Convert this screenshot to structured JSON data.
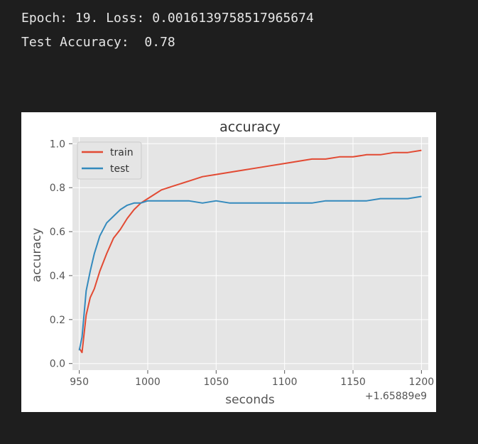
{
  "console": {
    "epoch_line": "Epoch: 19. Loss: 0.0016139758517965674",
    "accuracy_line": "Test Accuracy:  0.78"
  },
  "chart_data": {
    "type": "line",
    "title": "accuracy",
    "xlabel": "seconds",
    "ylabel": "accuracy",
    "offset_label": "+1.65889e9",
    "xlim": [
      945,
      1205
    ],
    "ylim": [
      -0.03,
      1.03
    ],
    "xticks": [
      950,
      1000,
      1050,
      1100,
      1150,
      1200
    ],
    "xtick_labels": [
      "950",
      "1000",
      "1050",
      "1100",
      "1150",
      "1200"
    ],
    "yticks": [
      0.0,
      0.2,
      0.4,
      0.6,
      0.8,
      1.0
    ],
    "ytick_labels": [
      "0.0",
      "0.2",
      "0.4",
      "0.6",
      "0.8",
      "1.0"
    ],
    "grid": true,
    "legend_position": "top-left",
    "colors": {
      "train": "#E24A33",
      "test": "#348ABD",
      "axes_bg": "#E5E5E5",
      "grid": "#FFFFFF"
    },
    "series": [
      {
        "name": "train",
        "x": [
          950,
          952,
          955,
          958,
          961,
          965,
          970,
          975,
          980,
          985,
          990,
          995,
          1000,
          1005,
          1010,
          1020,
          1030,
          1040,
          1050,
          1060,
          1070,
          1080,
          1090,
          1100,
          1110,
          1120,
          1130,
          1140,
          1150,
          1160,
          1170,
          1180,
          1190,
          1200
        ],
        "y": [
          0.07,
          0.05,
          0.22,
          0.3,
          0.34,
          0.42,
          0.5,
          0.57,
          0.61,
          0.66,
          0.7,
          0.73,
          0.75,
          0.77,
          0.79,
          0.81,
          0.83,
          0.85,
          0.86,
          0.87,
          0.88,
          0.89,
          0.9,
          0.91,
          0.92,
          0.93,
          0.93,
          0.94,
          0.94,
          0.95,
          0.95,
          0.96,
          0.96,
          0.97
        ]
      },
      {
        "name": "test",
        "x": [
          950,
          952,
          955,
          958,
          961,
          965,
          970,
          975,
          980,
          985,
          990,
          995,
          1000,
          1005,
          1010,
          1020,
          1030,
          1040,
          1050,
          1060,
          1070,
          1080,
          1090,
          1100,
          1110,
          1120,
          1130,
          1140,
          1150,
          1160,
          1170,
          1180,
          1190,
          1200
        ],
        "y": [
          0.06,
          0.12,
          0.33,
          0.42,
          0.5,
          0.58,
          0.64,
          0.67,
          0.7,
          0.72,
          0.73,
          0.73,
          0.74,
          0.74,
          0.74,
          0.74,
          0.74,
          0.73,
          0.74,
          0.73,
          0.73,
          0.73,
          0.73,
          0.73,
          0.73,
          0.73,
          0.74,
          0.74,
          0.74,
          0.74,
          0.75,
          0.75,
          0.75,
          0.76
        ]
      }
    ]
  }
}
